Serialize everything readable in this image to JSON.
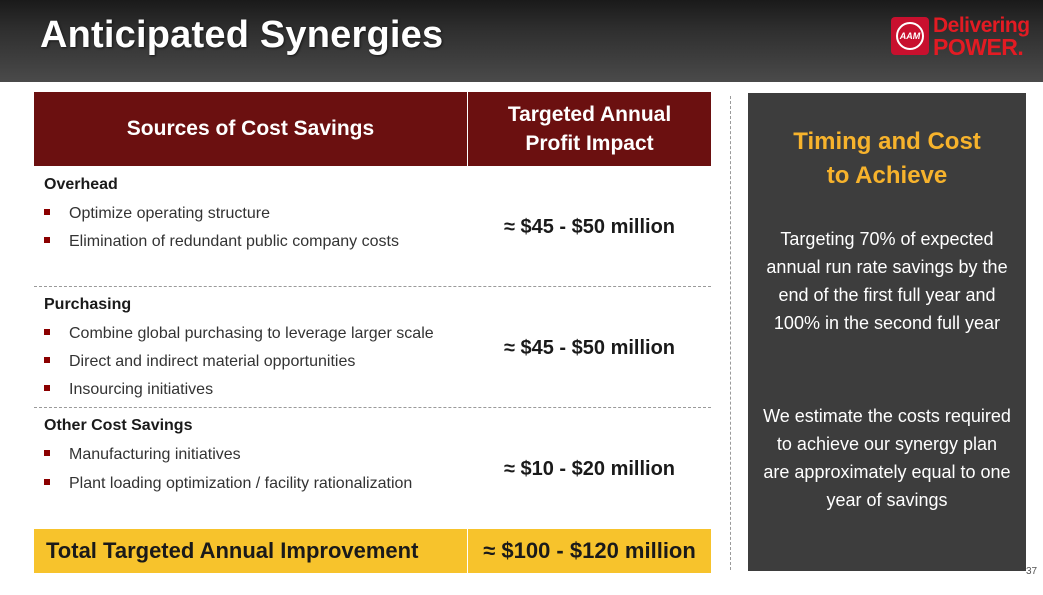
{
  "header": {
    "title": "Anticipated Synergies",
    "logo": {
      "badge_text": "AAM",
      "line1": "Delivering",
      "line2": "POWER."
    }
  },
  "table": {
    "headers": [
      "Sources of Cost Savings",
      "Targeted Annual Profit Impact"
    ],
    "rows": [
      {
        "title": "Overhead",
        "bullets": [
          "Optimize operating structure",
          "Elimination of redundant public company costs"
        ],
        "value": "≈ $45 - $50 million"
      },
      {
        "title": "Purchasing",
        "bullets": [
          "Combine global purchasing to leverage larger scale",
          "Direct and indirect material opportunities",
          "Insourcing initiatives"
        ],
        "value": "≈ $45 - $50 million"
      },
      {
        "title": "Other Cost Savings",
        "bullets": [
          "Manufacturing initiatives",
          "Plant loading optimization / facility rationalization"
        ],
        "value": "≈ $10 - $20 million"
      }
    ],
    "total": {
      "label": "Total Targeted Annual Improvement",
      "value": "≈ $100 - $120 million"
    }
  },
  "panel": {
    "title": "Timing and Cost to Achieve",
    "paragraphs": [
      "Targeting 70% of expected annual run rate savings by the end of the first full year and 100% in the second  full year",
      "We estimate the costs required to achieve our synergy plan are approximately equal to one year of savings"
    ]
  },
  "page_number": "37",
  "colors": {
    "header_dark": "#2e2e2e",
    "table_header": "#6b1010",
    "total_bar": "#f7c32c",
    "panel_bg": "#3d3d3d",
    "panel_title": "#f7b32c",
    "bullet": "#8b0000",
    "brand_red": "#e31b23"
  }
}
